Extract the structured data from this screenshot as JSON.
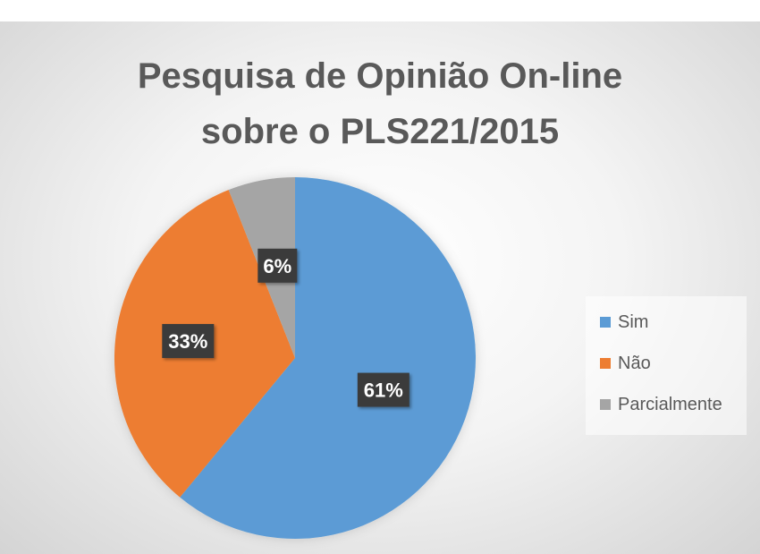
{
  "chart_data": {
    "type": "pie",
    "title": [
      "Pesquisa de Opinião On-line",
      "sobre o PLS221/2015"
    ],
    "categories": [
      "Sim",
      "Não",
      "Parcialmente"
    ],
    "values": [
      61,
      33,
      6
    ],
    "data_labels": [
      "61%",
      "33%",
      "6%"
    ],
    "colors": [
      "#5b9bd5",
      "#ed7d31",
      "#a5a5a5"
    ],
    "legend_position": "right",
    "start_angle_deg": 0
  }
}
